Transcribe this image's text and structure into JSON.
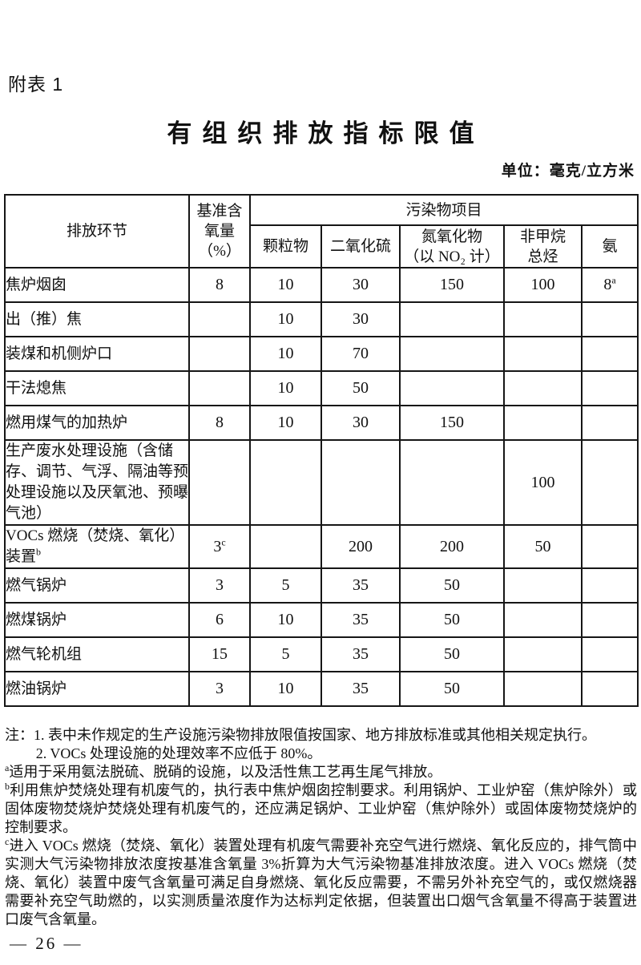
{
  "page": {
    "doc_label": "附表 1",
    "title": "有组织排放指标限值",
    "unit_label": "单位：毫克/立方米",
    "page_number": "— 26 —"
  },
  "table": {
    "stage_header": "排放环节",
    "oxygen_header_lines": [
      "基准含",
      "氧量",
      "（%）"
    ],
    "pollutant_group_header": "污染物项目",
    "pollutant_headers": [
      {
        "lines": [
          "颗粒物"
        ]
      },
      {
        "lines": [
          "二氧化硫"
        ]
      },
      {
        "lines": [
          "氮氧化物",
          "（以 NO₂ 计）"
        ]
      },
      {
        "lines": [
          "非甲烷",
          "总烃"
        ]
      },
      {
        "lines": [
          "氨"
        ]
      }
    ],
    "rows": [
      {
        "label": "焦炉烟囱",
        "cells": [
          "8",
          "10",
          "30",
          "150",
          "100",
          {
            "v": "8",
            "sup": "a"
          }
        ]
      },
      {
        "label": "出（推）焦",
        "cells": [
          "",
          "10",
          "30",
          "",
          "",
          ""
        ]
      },
      {
        "label": "装煤和机侧炉口",
        "cells": [
          "",
          "10",
          "70",
          "",
          "",
          ""
        ]
      },
      {
        "label": "干法熄焦",
        "cells": [
          "",
          "10",
          "50",
          "",
          "",
          ""
        ]
      },
      {
        "label": "燃用煤气的加热炉",
        "cells": [
          "8",
          "10",
          "30",
          "150",
          "",
          ""
        ]
      },
      {
        "label": "生产废水处理设施（含储存、调节、气浮、隔油等预处理设施以及厌氧池、预曝气池）",
        "cells": [
          "",
          "",
          "",
          "",
          "100",
          ""
        ]
      },
      {
        "label": "VOCs 燃烧（焚烧、氧化）装置",
        "label_sup": "b",
        "cells": [
          {
            "v": "3",
            "sup": "c"
          },
          "",
          "200",
          "200",
          "50",
          ""
        ]
      },
      {
        "label": "燃气锅炉",
        "cells": [
          "3",
          "5",
          "35",
          "50",
          "",
          ""
        ]
      },
      {
        "label": "燃煤锅炉",
        "cells": [
          "6",
          "10",
          "35",
          "50",
          "",
          ""
        ]
      },
      {
        "label": "燃气轮机组",
        "cells": [
          "15",
          "5",
          "35",
          "50",
          "",
          ""
        ]
      },
      {
        "label": "燃油锅炉",
        "cells": [
          "3",
          "10",
          "35",
          "50",
          "",
          ""
        ]
      }
    ]
  },
  "notes": [
    {
      "text": "注：1. 表中未作规定的生产设施污染物排放限值按国家、地方排放标准或其他相关规定执行。"
    },
    {
      "text": "2. VOCs 处理设施的处理效率不应低于 80%。",
      "indent": true
    },
    {
      "sup": "a",
      "text": "适用于采用氨法脱硫、脱硝的设施，以及活性焦工艺再生尾气排放。"
    },
    {
      "sup": "b",
      "text": "利用焦炉焚烧处理有机废气的，执行表中焦炉烟囱控制要求。利用锅炉、工业炉窑（焦炉除外）或固体废物焚烧炉焚烧处理有机废气的，还应满足锅炉、工业炉窑（焦炉除外）或固体废物焚烧炉的控制要求。"
    },
    {
      "sup": "c",
      "text": "进入 VOCs 燃烧（焚烧、氧化）装置处理有机废气需要补充空气进行燃烧、氧化反应的，排气筒中实测大气污染物排放浓度按基准含氧量 3%折算为大气污染物基准排放浓度。进入 VOCs 燃烧（焚烧、氧化）装置中废气含氧量可满足自身燃烧、氧化反应需要，不需另外补充空气的，或仅燃烧器需要补充空气助燃的，以实测质量浓度作为达标判定依据，但装置出口烟气含氧量不得高于装置进口废气含氧量。"
    }
  ],
  "colors": {
    "background": "#ffffff",
    "text": "#111111",
    "border": "#161616"
  }
}
